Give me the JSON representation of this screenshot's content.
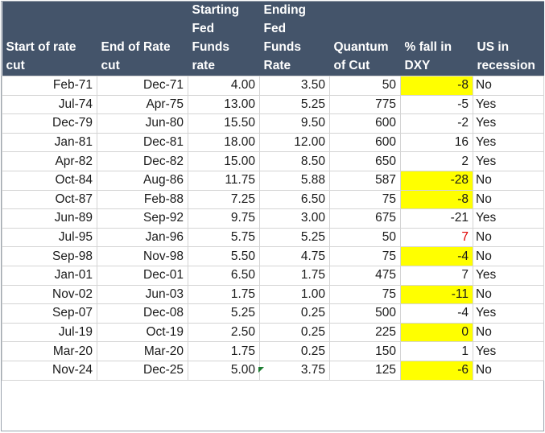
{
  "headers": [
    [
      "",
      "",
      "Starting",
      "Ending",
      "",
      "",
      ""
    ],
    [
      "",
      "",
      "Fed",
      "Fed",
      "",
      "",
      ""
    ],
    [
      "Start of rate",
      "End of Rate",
      "Funds",
      "Funds",
      "Quantum",
      "% fall in",
      "US in"
    ],
    [
      "cut",
      "cut",
      "rate",
      "Rate",
      "of Cut",
      "DXY",
      "recession"
    ]
  ],
  "rows": [
    [
      "Feb-71",
      "Dec-71",
      "4.00",
      "3.50",
      "50",
      "-8",
      "No"
    ],
    [
      "Jul-74",
      "Apr-75",
      "13.00",
      "5.25",
      "775",
      "-5",
      "Yes"
    ],
    [
      "Dec-79",
      "Jun-80",
      "15.50",
      "9.50",
      "600",
      "-2",
      "Yes"
    ],
    [
      "Jan-81",
      "Dec-81",
      "18.00",
      "12.00",
      "600",
      "16",
      "Yes"
    ],
    [
      "Apr-82",
      "Dec-82",
      "15.00",
      "8.50",
      "650",
      "2",
      "Yes"
    ],
    [
      "Oct-84",
      "Aug-86",
      "11.75",
      "5.88",
      "587",
      "-28",
      "No"
    ],
    [
      "Oct-87",
      "Feb-88",
      "7.25",
      "6.50",
      "75",
      "-8",
      "No"
    ],
    [
      "Jun-89",
      "Sep-92",
      "9.75",
      "3.00",
      "675",
      "-21",
      "Yes"
    ],
    [
      "Jul-95",
      "Jan-96",
      "5.75",
      "5.25",
      "50",
      "7",
      "No"
    ],
    [
      "Sep-98",
      "Nov-98",
      "5.50",
      "4.75",
      "75",
      "-4",
      "No"
    ],
    [
      "Jan-01",
      "Dec-01",
      "6.50",
      "1.75",
      "475",
      "7",
      "Yes"
    ],
    [
      "Nov-02",
      "Jun-03",
      "1.75",
      "1.00",
      "75",
      "-11",
      "No"
    ],
    [
      "Sep-07",
      "Dec-08",
      "5.25",
      "0.25",
      "500",
      "-4",
      "Yes"
    ],
    [
      "Jul-19",
      "Oct-19",
      "2.50",
      "0.25",
      "225",
      "0",
      "No"
    ],
    [
      "Mar-20",
      "Mar-20",
      "1.75",
      "0.25",
      "150",
      "1",
      "Yes"
    ],
    [
      "Nov-24",
      "Dec-25",
      "5.00",
      "3.75",
      "125",
      "-6",
      "No"
    ]
  ],
  "highlight_rows_dxy": [
    0,
    5,
    6,
    9,
    11,
    13,
    15
  ],
  "red_text_rows_dxy": [
    8
  ],
  "colors": {
    "header_bg": "#44546a",
    "header_text": "#ffffff",
    "highlight": "#ffff00",
    "red_text": "#e00000",
    "comment_marker": "#1e7d32"
  }
}
